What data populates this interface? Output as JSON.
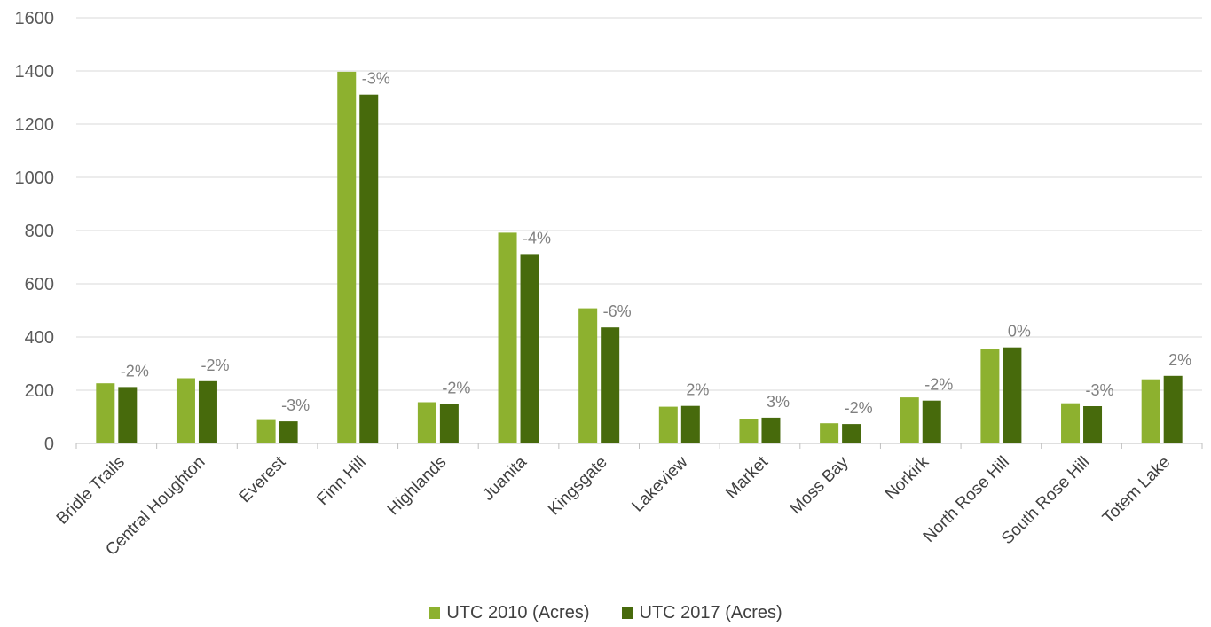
{
  "chart_data": {
    "type": "bar",
    "categories": [
      "Bridle Trails",
      "Central Houghton",
      "Everest",
      "Finn Hill",
      "Highlands",
      "Juanita",
      "Kingsgate",
      "Lakeview",
      "Market",
      "Moss Bay",
      "Norkirk",
      "North Rose Hill",
      "South Rose Hill",
      "Totem Lake"
    ],
    "series": [
      {
        "name": "UTC 2010 (Acres)",
        "color": "#8db12f",
        "values": [
          226,
          245,
          88,
          1397,
          155,
          792,
          508,
          138,
          91,
          76,
          173,
          354,
          151,
          241
        ]
      },
      {
        "name": "UTC 2017 (Acres)",
        "color": "#476a0c",
        "values": [
          212,
          234,
          83,
          1311,
          148,
          712,
          436,
          141,
          97,
          73,
          161,
          361,
          140,
          254
        ]
      }
    ],
    "data_labels": [
      "-2%",
      "-2%",
      "-3%",
      "-3%",
      "-2%",
      "-4%",
      "-6%",
      "2%",
      "3%",
      "-2%",
      "-2%",
      "0%",
      "-3%",
      "2%"
    ],
    "y_ticks": [
      "0",
      "200",
      "400",
      "600",
      "800",
      "1000",
      "1200",
      "1400",
      "1600"
    ],
    "ylim": [
      0,
      1600
    ],
    "grid": true,
    "legend_position": "bottom"
  }
}
